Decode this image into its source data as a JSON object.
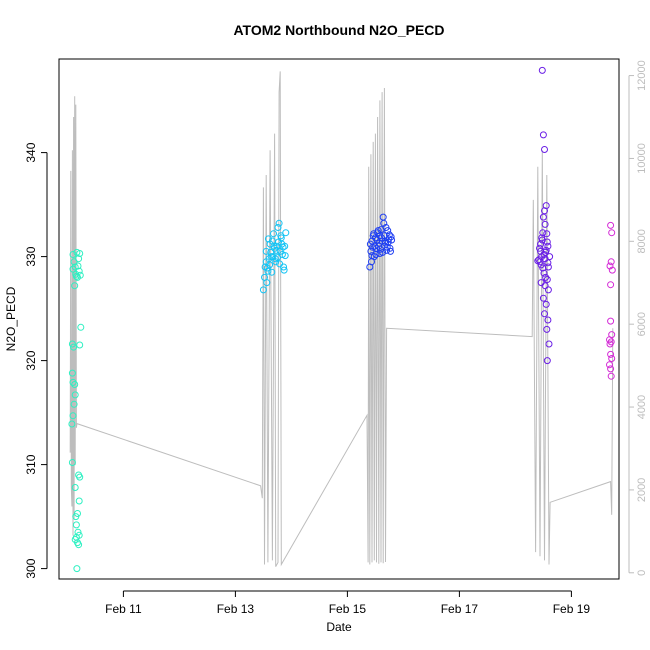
{
  "chart_data": {
    "type": "scatter",
    "title": "ATOM2 Northbound N2O_PECD",
    "xlabel": "Date",
    "ylabel": "N2O_PECD",
    "x_range_days": [
      9.85,
      19.85
    ],
    "xlim_label": "Feb 2016 (day of month)",
    "xticks": [
      {
        "day": 11,
        "label": "Feb 11"
      },
      {
        "day": 13,
        "label": "Feb 13"
      },
      {
        "day": 15,
        "label": "Feb 15"
      },
      {
        "day": 17,
        "label": "Feb 17"
      },
      {
        "day": 19,
        "label": "Feb 19"
      }
    ],
    "ylim": [
      299,
      349
    ],
    "yticks": [
      300,
      310,
      320,
      330,
      340
    ],
    "y2lim": [
      -150,
      12400
    ],
    "y2ticks": [
      0,
      2000,
      4000,
      6000,
      8000,
      10000,
      12000
    ],
    "y2_axis_color": "#bdbdbd",
    "line_color": "#bdbdbd",
    "grid": false,
    "series": [
      {
        "color": "#2ef0c2",
        "points": [
          [
            10.1,
            330.2
          ],
          [
            10.12,
            329.5
          ],
          [
            10.14,
            329.0
          ],
          [
            10.1,
            328.8
          ],
          [
            10.15,
            328.3
          ],
          [
            10.16,
            328.1
          ],
          [
            10.18,
            328.0
          ],
          [
            10.2,
            329.8
          ],
          [
            10.22,
            330.3
          ],
          [
            10.13,
            327.2
          ],
          [
            10.17,
            330.4
          ],
          [
            10.19,
            329.1
          ],
          [
            10.21,
            328.6
          ],
          [
            10.23,
            328.2
          ],
          [
            10.09,
            321.6
          ],
          [
            10.11,
            321.3
          ],
          [
            10.24,
            323.2
          ],
          [
            10.22,
            321.5
          ],
          [
            10.09,
            318.8
          ],
          [
            10.1,
            317.9
          ],
          [
            10.13,
            317.7
          ],
          [
            10.14,
            316.7
          ],
          [
            10.12,
            315.8
          ],
          [
            10.1,
            314.7
          ],
          [
            10.08,
            313.9
          ],
          [
            10.09,
            310.2
          ],
          [
            10.2,
            309.0
          ],
          [
            10.22,
            308.8
          ],
          [
            10.14,
            307.8
          ],
          [
            10.21,
            306.5
          ],
          [
            10.18,
            305.3
          ],
          [
            10.15,
            305.0
          ],
          [
            10.16,
            304.2
          ],
          [
            10.19,
            303.5
          ],
          [
            10.21,
            303.2
          ],
          [
            10.16,
            303.0
          ],
          [
            10.14,
            302.8
          ],
          [
            10.18,
            302.5
          ],
          [
            10.2,
            302.3
          ],
          [
            10.17,
            300.0
          ]
        ]
      },
      {
        "color": "#14c4f5",
        "points": [
          [
            13.5,
            326.8
          ],
          [
            13.52,
            328.0
          ],
          [
            13.53,
            329.0
          ],
          [
            13.55,
            330.5
          ],
          [
            13.55,
            329.5
          ],
          [
            13.58,
            328.6
          ],
          [
            13.6,
            329.8
          ],
          [
            13.62,
            331.2
          ],
          [
            13.64,
            330.0
          ],
          [
            13.66,
            331.5
          ],
          [
            13.68,
            332.2
          ],
          [
            13.7,
            330.8
          ],
          [
            13.72,
            329.5
          ],
          [
            13.74,
            331.0
          ],
          [
            13.76,
            332.8
          ],
          [
            13.78,
            333.2
          ],
          [
            13.8,
            330.5
          ],
          [
            13.82,
            331.8
          ],
          [
            13.84,
            330.2
          ],
          [
            13.86,
            329.0
          ],
          [
            13.88,
            331.0
          ],
          [
            13.9,
            332.3
          ],
          [
            13.57,
            328.9
          ],
          [
            13.61,
            329.2
          ],
          [
            13.63,
            330.4
          ],
          [
            13.65,
            328.5
          ],
          [
            13.69,
            331.0
          ],
          [
            13.71,
            329.8
          ],
          [
            13.73,
            330.6
          ],
          [
            13.77,
            331.4
          ],
          [
            13.79,
            329.3
          ],
          [
            13.83,
            331.2
          ],
          [
            13.85,
            330.9
          ],
          [
            13.87,
            328.7
          ],
          [
            13.89,
            330.1
          ],
          [
            13.56,
            327.5
          ],
          [
            13.59,
            331.7
          ],
          [
            13.67,
            330.0
          ],
          [
            13.75,
            329.9
          ],
          [
            13.81,
            332.0
          ]
        ]
      },
      {
        "color": "#1f3ff2",
        "points": [
          [
            15.4,
            329.0
          ],
          [
            15.42,
            330.5
          ],
          [
            15.44,
            331.5
          ],
          [
            15.46,
            332.0
          ],
          [
            15.48,
            330.0
          ],
          [
            15.5,
            331.8
          ],
          [
            15.52,
            330.8
          ],
          [
            15.54,
            332.3
          ],
          [
            15.56,
            331.0
          ],
          [
            15.58,
            330.3
          ],
          [
            15.6,
            332.6
          ],
          [
            15.62,
            331.5
          ],
          [
            15.64,
            333.8
          ],
          [
            15.66,
            332.0
          ],
          [
            15.68,
            331.3
          ],
          [
            15.7,
            330.6
          ],
          [
            15.72,
            332.5
          ],
          [
            15.74,
            331.7
          ],
          [
            15.76,
            330.8
          ],
          [
            15.78,
            331.9
          ],
          [
            15.41,
            331.2
          ],
          [
            15.43,
            329.5
          ],
          [
            15.45,
            330.9
          ],
          [
            15.47,
            332.2
          ],
          [
            15.49,
            331.0
          ],
          [
            15.51,
            330.2
          ],
          [
            15.53,
            331.6
          ],
          [
            15.55,
            332.5
          ],
          [
            15.57,
            331.3
          ],
          [
            15.59,
            330.7
          ],
          [
            15.61,
            331.8
          ],
          [
            15.63,
            330.4
          ],
          [
            15.65,
            333.2
          ],
          [
            15.67,
            331.5
          ],
          [
            15.69,
            332.8
          ],
          [
            15.71,
            330.9
          ],
          [
            15.73,
            331.4
          ],
          [
            15.75,
            332.1
          ],
          [
            15.77,
            330.5
          ],
          [
            15.79,
            331.6
          ],
          [
            15.44,
            330.1
          ],
          [
            15.58,
            332.0
          ]
        ]
      },
      {
        "color": "#6a1ee6",
        "points": [
          [
            18.48,
            347.9
          ],
          [
            18.5,
            341.7
          ],
          [
            18.52,
            340.3
          ],
          [
            18.55,
            334.9
          ],
          [
            18.52,
            334.4
          ],
          [
            18.5,
            333.8
          ],
          [
            18.53,
            333.1
          ],
          [
            18.56,
            332.2
          ],
          [
            18.48,
            331.6
          ],
          [
            18.58,
            331.0
          ],
          [
            18.45,
            330.5
          ],
          [
            18.47,
            330.0
          ],
          [
            18.42,
            329.7
          ],
          [
            18.44,
            329.5
          ],
          [
            18.46,
            329.2
          ],
          [
            18.49,
            328.9
          ],
          [
            18.51,
            328.4
          ],
          [
            18.54,
            328.0
          ],
          [
            18.57,
            327.8
          ],
          [
            18.53,
            327.2
          ],
          [
            18.59,
            326.8
          ],
          [
            18.5,
            326.0
          ],
          [
            18.55,
            325.4
          ],
          [
            18.52,
            324.5
          ],
          [
            18.58,
            323.9
          ],
          [
            18.56,
            323.0
          ],
          [
            18.6,
            321.6
          ],
          [
            18.57,
            320.0
          ],
          [
            18.43,
            330.8
          ],
          [
            18.45,
            331.2
          ],
          [
            18.47,
            331.8
          ],
          [
            18.49,
            332.3
          ],
          [
            18.51,
            330.2
          ],
          [
            18.53,
            329.8
          ],
          [
            18.55,
            330.6
          ],
          [
            18.57,
            331.4
          ],
          [
            18.59,
            329.0
          ],
          [
            18.61,
            330.0
          ],
          [
            18.4,
            329.6
          ],
          [
            18.46,
            327.5
          ],
          [
            18.54,
            330.4
          ],
          [
            18.58,
            329.4
          ]
        ]
      },
      {
        "color": "#d42bd6",
        "points": [
          [
            19.7,
            333.0
          ],
          [
            19.72,
            332.3
          ],
          [
            19.71,
            329.5
          ],
          [
            19.69,
            329.1
          ],
          [
            19.73,
            328.7
          ],
          [
            19.7,
            327.3
          ],
          [
            19.7,
            323.8
          ],
          [
            19.72,
            322.5
          ],
          [
            19.68,
            322.0
          ],
          [
            19.71,
            321.8
          ],
          [
            19.69,
            321.6
          ],
          [
            19.7,
            320.6
          ],
          [
            19.72,
            320.2
          ],
          [
            19.68,
            319.6
          ],
          [
            19.7,
            319.2
          ],
          [
            19.71,
            318.5
          ]
        ]
      }
    ],
    "secondary_line": {
      "color": "#bdbdbd",
      "description_free": true,
      "points": [
        [
          10.05,
          2900
        ],
        [
          10.06,
          9700
        ],
        [
          10.07,
          2100
        ],
        [
          10.08,
          1600
        ],
        [
          10.09,
          10200
        ],
        [
          10.1,
          900
        ],
        [
          10.11,
          11000
        ],
        [
          10.12,
          1300
        ],
        [
          10.13,
          11500
        ],
        [
          10.14,
          2600
        ],
        [
          10.15,
          11300
        ],
        [
          10.16,
          3500
        ],
        [
          10.17,
          3600
        ],
        [
          13.45,
          2100
        ],
        [
          13.48,
          1800
        ],
        [
          13.5,
          9300
        ],
        [
          13.52,
          200
        ],
        [
          13.55,
          9600
        ],
        [
          13.58,
          250
        ],
        [
          13.62,
          10200
        ],
        [
          13.66,
          300
        ],
        [
          13.7,
          10600
        ],
        [
          13.72,
          150
        ],
        [
          13.76,
          250
        ],
        [
          13.78,
          11600
        ],
        [
          13.8,
          12100
        ],
        [
          13.82,
          200
        ],
        [
          15.35,
          3800
        ],
        [
          15.37,
          250
        ],
        [
          15.38,
          9800
        ],
        [
          15.4,
          200
        ],
        [
          15.42,
          10100
        ],
        [
          15.44,
          250
        ],
        [
          15.46,
          10400
        ],
        [
          15.48,
          300
        ],
        [
          15.5,
          10600
        ],
        [
          15.52,
          250
        ],
        [
          15.54,
          11000
        ],
        [
          15.56,
          220
        ],
        [
          15.58,
          11400
        ],
        [
          15.6,
          250
        ],
        [
          15.62,
          11600
        ],
        [
          15.64,
          230
        ],
        [
          15.66,
          11700
        ],
        [
          15.68,
          260
        ],
        [
          15.7,
          5900
        ],
        [
          18.3,
          5700
        ],
        [
          18.32,
          9000
        ],
        [
          18.36,
          500
        ],
        [
          18.4,
          9800
        ],
        [
          18.44,
          400
        ],
        [
          18.48,
          10200
        ],
        [
          18.52,
          300
        ],
        [
          18.56,
          9600
        ],
        [
          18.6,
          200
        ],
        [
          18.62,
          1700
        ],
        [
          19.7,
          2200
        ],
        [
          19.72,
          1400
        ],
        [
          19.74,
          5900
        ]
      ]
    }
  }
}
